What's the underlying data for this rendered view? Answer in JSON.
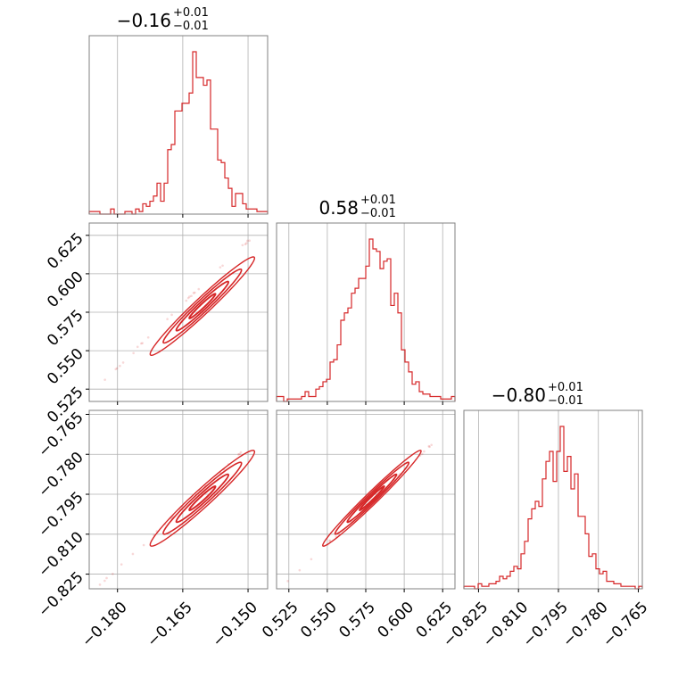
{
  "colors": {
    "series": "#d62728",
    "grid": "#b0b0b0",
    "frame": "#808080"
  },
  "chart_data": {
    "type": "corner",
    "parameters": [
      {
        "title_value": "−0.16",
        "title_plus": "+0.01",
        "title_minus": "−0.01",
        "range": [
          -0.1865,
          -0.1455
        ],
        "ticks": [
          -0.18,
          -0.165,
          -0.15
        ],
        "tick_labels": [
          "−0.180",
          "−0.165",
          "−0.150"
        ]
      },
      {
        "title_value": "0.58",
        "title_plus": "+0.01",
        "title_minus": "−0.01",
        "range": [
          0.517,
          0.633
        ],
        "ticks": [
          0.525,
          0.55,
          0.575,
          0.6,
          0.625
        ],
        "tick_labels": [
          "0.525",
          "0.550",
          "0.575",
          "0.600",
          "0.625"
        ]
      },
      {
        "title_value": "−0.80",
        "title_plus": "+0.01",
        "title_minus": "−0.01",
        "range": [
          -0.8305,
          -0.7635
        ],
        "ticks": [
          -0.825,
          -0.81,
          -0.795,
          -0.78,
          -0.765
        ],
        "tick_labels": [
          "−0.825",
          "−0.810",
          "−0.795",
          "−0.780",
          "−0.765"
        ]
      }
    ],
    "histograms": [
      {
        "param": 0,
        "counts": [
          1,
          1,
          1,
          0,
          0,
          0,
          2,
          0,
          0,
          0,
          1,
          1,
          0,
          2,
          1,
          4,
          3,
          5,
          7,
          12,
          5,
          12,
          25,
          27,
          40,
          40,
          43,
          43,
          47,
          63,
          53,
          53,
          50,
          52,
          33,
          33,
          21,
          20,
          14,
          10,
          3,
          8,
          8,
          4,
          2,
          2,
          2,
          1,
          1,
          1
        ]
      },
      {
        "param": 1,
        "counts": [
          2,
          2,
          0,
          1,
          1,
          1,
          1,
          2,
          4,
          2,
          2,
          5,
          6,
          8,
          9,
          16,
          17,
          23,
          33,
          36,
          38,
          44,
          46,
          50,
          50,
          55,
          66,
          62,
          61,
          54,
          57,
          58,
          39,
          44,
          36,
          21,
          16,
          12,
          7,
          8,
          4,
          3,
          3,
          2,
          2,
          2,
          1,
          1,
          1,
          2
        ]
      },
      {
        "param": 2,
        "counts": [
          1,
          1,
          1,
          0,
          2,
          1,
          1,
          2,
          2,
          3,
          5,
          4,
          5,
          7,
          9,
          8,
          14,
          19,
          28,
          32,
          35,
          33,
          44,
          51,
          55,
          43,
          55,
          65,
          47,
          53,
          40,
          46,
          29,
          29,
          22,
          13,
          14,
          8,
          6,
          7,
          3,
          3,
          2,
          2,
          1,
          1,
          1,
          1,
          0,
          1
        ]
      }
    ],
    "pairs": [
      {
        "x_param": 0,
        "y_param": 1,
        "mean": [
          -0.1605,
          0.579
        ],
        "sigma": [
          0.006,
          0.016
        ],
        "rho": 0.975,
        "tail_from": [
          -0.184,
          0.528
        ],
        "tail_to": [
          -0.148,
          0.627
        ]
      },
      {
        "x_param": 0,
        "y_param": 2,
        "mean": [
          -0.1605,
          -0.7965
        ],
        "sigma": [
          0.006,
          0.009
        ],
        "rho": 0.97,
        "tail_from": [
          -0.184,
          -0.829
        ],
        "tail_to": [
          -0.148,
          -0.774
        ]
      },
      {
        "x_param": 1,
        "y_param": 2,
        "mean": [
          0.579,
          -0.7965
        ],
        "sigma": [
          0.016,
          0.009
        ],
        "rho": 0.985,
        "tail_from": [
          0.524,
          -0.828
        ],
        "tail_to": [
          0.624,
          -0.773
        ]
      }
    ],
    "contour_sigma_levels": [
      0.5,
      1.0,
      1.5,
      2.0
    ],
    "grid": true,
    "legend": "none"
  }
}
